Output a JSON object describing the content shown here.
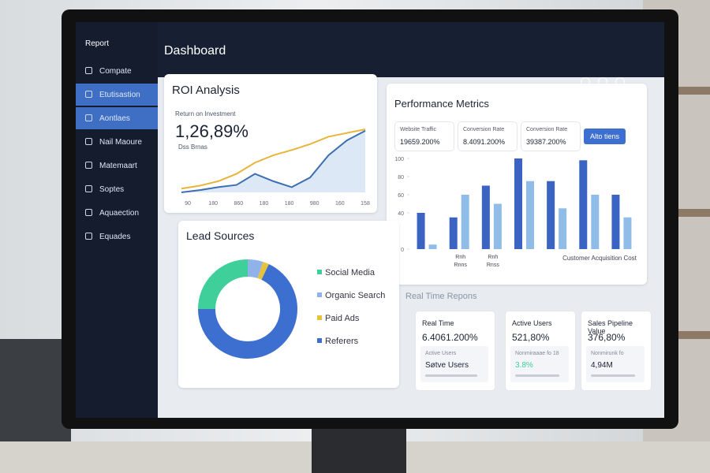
{
  "sidebar": {
    "brand": "Report",
    "items": [
      "Compate",
      "Etutisastion",
      "Aontlaes",
      "Nail Maoure",
      "Matemaart",
      "Soptes",
      "Aquaection",
      "Equades"
    ]
  },
  "header": {
    "title": "Dashboard"
  },
  "roi": {
    "title": "ROI Analysis",
    "subtitle": "Return on Investment",
    "value": "1,26,89%",
    "caption": "Dss Brnas",
    "x_labels": [
      "90",
      "180",
      "860",
      "180",
      "180",
      "980",
      "160",
      "158"
    ],
    "series": [
      {
        "color": "#e8b53a",
        "values": [
          10,
          14,
          20,
          30,
          45,
          55,
          62,
          70,
          80,
          85,
          90
        ]
      },
      {
        "color": "#3d6fb0",
        "values": [
          5,
          8,
          12,
          15,
          30,
          20,
          12,
          25,
          55,
          75,
          88
        ]
      }
    ]
  },
  "performance": {
    "title": "Performance Metrics",
    "cards": [
      {
        "label": "Website Traffic",
        "value": "19659.200%"
      },
      {
        "label": "Conversion Rate",
        "value": "8.4091.200%"
      },
      {
        "label": "Conversion Rate",
        "value": "39387.200%"
      }
    ],
    "button": "Alto tiens",
    "chart": {
      "type": "bar",
      "ylim": [
        0,
        100
      ],
      "yticks": [
        0,
        40,
        60,
        80,
        100
      ],
      "categories": [
        null,
        "Rnh",
        "Rnh",
        null,
        null,
        null,
        null
      ],
      "categories_sub": [
        null,
        "Rnns",
        "Rnss",
        null,
        null,
        null,
        null
      ],
      "x_caption": "Customer Acquisition Cost",
      "series": [
        {
          "color": "#3a63c4",
          "values": [
            40,
            35,
            70,
            100,
            75,
            98,
            60
          ]
        },
        {
          "color": "#8fbde8",
          "values": [
            5,
            60,
            50,
            75,
            45,
            60,
            35
          ]
        }
      ]
    }
  },
  "lead": {
    "title": "Lead Sources",
    "type": "pie",
    "series": [
      {
        "name": "Social Media",
        "color": "#3ecf9a",
        "value": 25
      },
      {
        "name": "Organic Search",
        "color": "#8fb3e8",
        "value": 5
      },
      {
        "name": "Paid Ads",
        "color": "#e8c23a",
        "value": 2
      },
      {
        "name": "Referers",
        "color": "#3d6fd1",
        "value": 68
      }
    ]
  },
  "realtime": {
    "title": "Real Time Repons",
    "cards": [
      {
        "title": "Real Time",
        "value": "6.4061.200%",
        "sub": "Active Users",
        "sub_value": "Søtve Users"
      },
      {
        "title": "Active Users",
        "value": "521,80%",
        "sub": "Nonmiraaae fo 18",
        "sub_value": "3.8%"
      },
      {
        "title": "Sales Pipeline Value",
        "value": "376,80%",
        "sub": "Nonmirunk fo",
        "sub_value": "4,94M"
      }
    ]
  }
}
